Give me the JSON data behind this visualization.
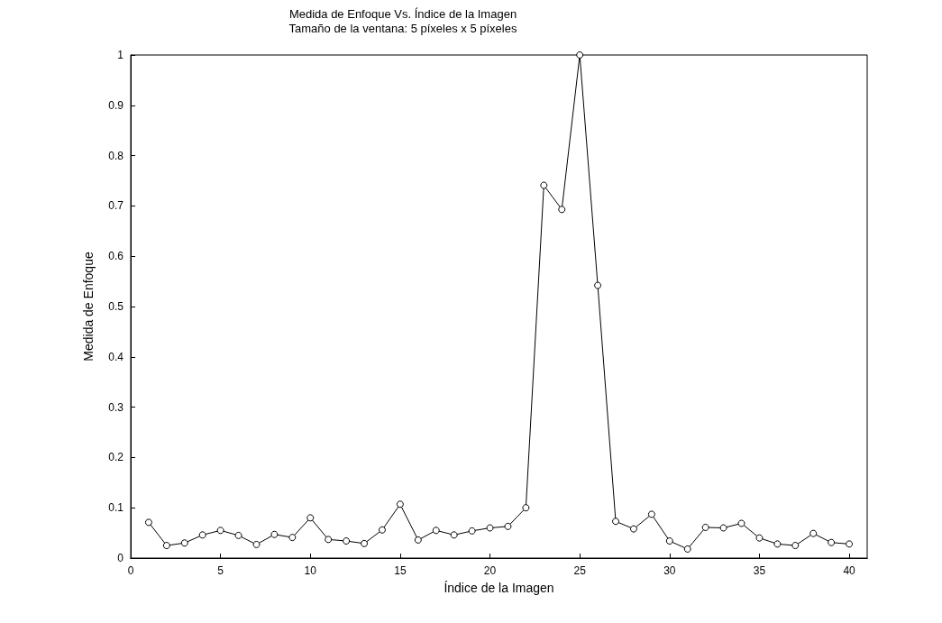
{
  "chart_data": {
    "type": "line",
    "title": "Medida de Enfoque Vs. Índice de la Imagen",
    "subtitle": "Tamaño de la ventana: 5 píxeles x 5 píxeles",
    "xlabel": "Índice de la Imagen",
    "ylabel": "Medida de Enfoque",
    "x": [
      1,
      2,
      3,
      4,
      5,
      6,
      7,
      8,
      9,
      10,
      11,
      12,
      13,
      14,
      15,
      16,
      17,
      18,
      19,
      20,
      21,
      22,
      23,
      24,
      25,
      26,
      27,
      28,
      29,
      30,
      31,
      32,
      33,
      34,
      35,
      36,
      37,
      38,
      39,
      40
    ],
    "series": [
      {
        "color": "#000000",
        "values": [
          0.071,
          0.025,
          0.03,
          0.046,
          0.055,
          0.045,
          0.027,
          0.047,
          0.041,
          0.08,
          0.037,
          0.034,
          0.029,
          0.056,
          0.107,
          0.036,
          0.055,
          0.046,
          0.054,
          0.06,
          0.063,
          0.1,
          0.741,
          0.693,
          1.0,
          0.542,
          0.073,
          0.058,
          0.087,
          0.034,
          0.018,
          0.061,
          0.06,
          0.069,
          0.04,
          0.028,
          0.025,
          0.049,
          0.031,
          0.028
        ]
      }
    ],
    "xlim": [
      0,
      41
    ],
    "xticks": [
      0,
      5,
      10,
      15,
      20,
      25,
      30,
      35,
      40
    ],
    "ylim": [
      0,
      1
    ],
    "yticks": [
      0,
      0.1,
      0.2,
      0.3,
      0.4,
      0.5,
      0.6,
      0.7,
      0.8,
      0.9,
      1
    ],
    "grid": false,
    "marker": "circle",
    "line_style": "solid"
  }
}
